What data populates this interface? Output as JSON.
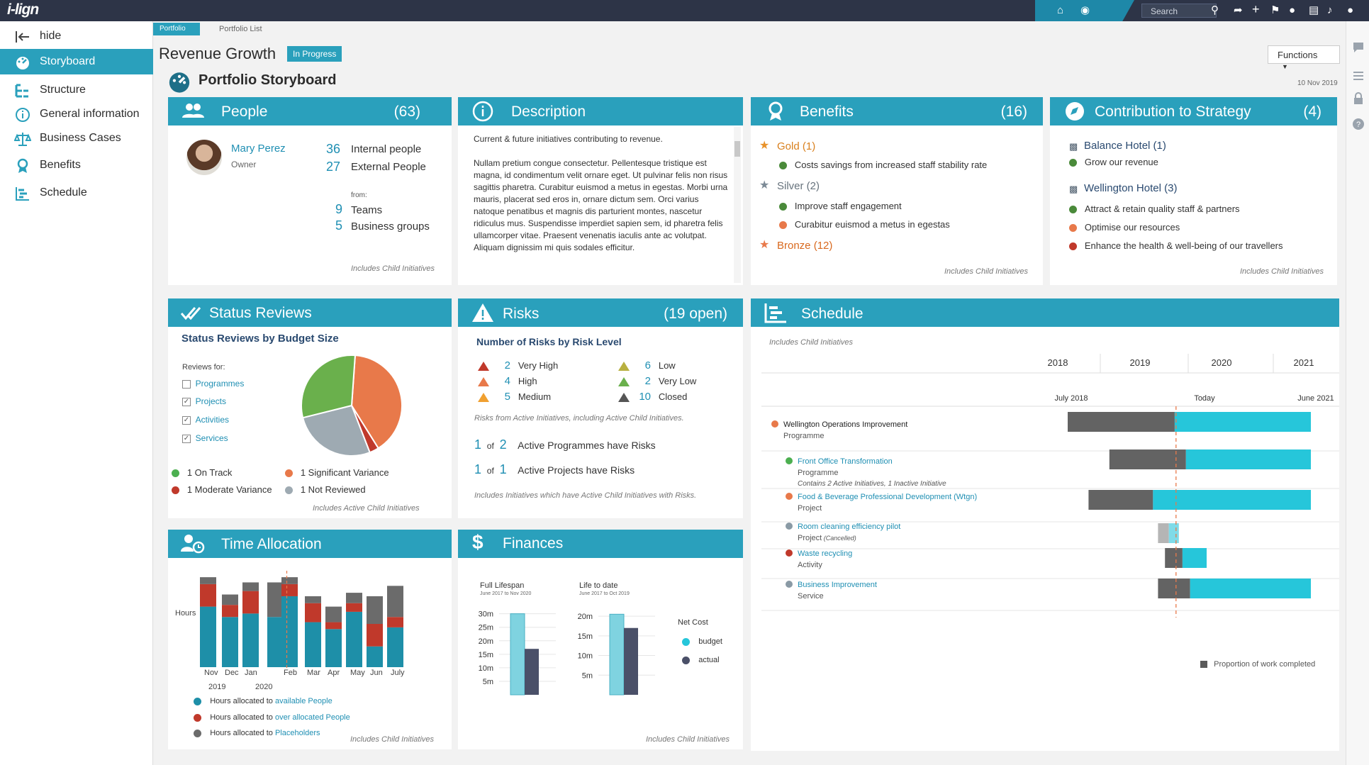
{
  "app": {
    "logo": "i-lign"
  },
  "topbar": {
    "search_placeholder": "Search"
  },
  "sidebar": {
    "items": [
      {
        "label": "hide",
        "icon": "arrow-left-bar-icon"
      },
      {
        "label": "Storyboard",
        "icon": "dashboard-icon",
        "active": true
      },
      {
        "label": "Structure",
        "icon": "structure-icon"
      },
      {
        "label": "General information",
        "icon": "info-icon"
      },
      {
        "label": "Business Cases",
        "icon": "scales-icon"
      },
      {
        "label": "Benefits",
        "icon": "award-icon"
      },
      {
        "label": "Schedule",
        "icon": "gantt-icon"
      }
    ]
  },
  "breadcrumb": {
    "portfolio": "Portfolio",
    "list": "Portfolio List"
  },
  "page": {
    "title": "Revenue Growth",
    "status": "In Progress",
    "storyboard_title": "Portfolio Storyboard",
    "functions_label": "Functions",
    "date": "10 Nov 2019"
  },
  "colors": {
    "accent": "#2aa0bc",
    "green": "#4caf50",
    "orange": "#e8794a",
    "red": "#c0392b",
    "grey": "#8a9aa5",
    "dark": "#5a5a5a",
    "cyan": "#26c6da"
  },
  "people": {
    "title": "People",
    "count": "(63)",
    "person_name": "Mary Perez",
    "person_role": "Owner",
    "internal_num": "36",
    "internal_label": "Internal people",
    "external_num": "27",
    "external_label": "External People",
    "from_label": "from:",
    "teams_num": "9",
    "teams_label": "Teams",
    "groups_num": "5",
    "groups_label": "Business groups",
    "note": "Includes Child Initiatives"
  },
  "description": {
    "title": "Description",
    "intro": "Current & future initiatives contributing to revenue.",
    "body": "Nullam pretium congue consectetur. Pellentesque tristique est magna, id condimentum velit ornare eget. Ut pulvinar felis non risus sagittis pharetra. Curabitur euismod a metus in egestas. Morbi urna mauris, placerat sed eros in, ornare dictum sem. Orci varius natoque penatibus et magnis dis parturient montes, nascetur ridiculus mus. Suspendisse imperdiet sapien sem, id pharetra felis ullamcorper vitae. Praesent venenatis iaculis ante ac volutpat. Aliquam dignissim mi quis sodales efficitur."
  },
  "benefits": {
    "title": "Benefits",
    "count": "(16)",
    "gold": "Gold (1)",
    "gold_item": "Costs savings from increased staff stability rate",
    "silver": "Silver (2)",
    "silver_item1": "Improve staff engagement",
    "silver_item2": "Curabitur euismod a metus in egestas",
    "bronze": "Bronze (12)",
    "note": "Includes Child Initiatives"
  },
  "strategy": {
    "title": "Contribution to Strategy",
    "count": "(4)",
    "h1": "Balance Hotel (1)",
    "h1_item": "Grow our revenue",
    "h2": "Wellington Hotel (3)",
    "h2_item1": "Attract & retain quality staff & partners",
    "h2_item2": "Optimise our resources",
    "h2_item3": "Enhance the health & well-being of our travellers",
    "note": "Includes Child Initiatives"
  },
  "status_reviews": {
    "title": "Status Reviews",
    "subtitle": "Status Reviews by Budget Size",
    "reviews_for": "Reviews for:",
    "filters": [
      {
        "label": "Programmes",
        "checked": false
      },
      {
        "label": "Projects",
        "checked": true
      },
      {
        "label": "Activities",
        "checked": true
      },
      {
        "label": "Services",
        "checked": true
      }
    ],
    "legend": [
      "1 On Track",
      "1 Significant Variance",
      "1 Moderate Variance",
      "1 Not Reviewed"
    ],
    "note": "Includes Active Child Initiatives"
  },
  "risks": {
    "title": "Risks",
    "count": "(19 open)",
    "subtitle": "Number of Risks by Risk Level",
    "levels": [
      {
        "num": "2",
        "label": "Very High",
        "color": "#c0392b"
      },
      {
        "num": "4",
        "label": "High",
        "color": "#e8794a"
      },
      {
        "num": "5",
        "label": "Medium",
        "color": "#f0a030"
      },
      {
        "num": "6",
        "label": "Low",
        "color": "#b8b040"
      },
      {
        "num": "2",
        "label": "Very Low",
        "color": "#6ab04c"
      },
      {
        "num": "10",
        "label": "Closed",
        "color": "#555555"
      }
    ],
    "from_note": "Risks from Active Initiatives, including Active Child Initiatives.",
    "prog_a": "1",
    "of": "of",
    "prog_b": "2",
    "prog_label": "Active Programmes have Risks",
    "proj_a": "1",
    "proj_b": "1",
    "proj_label": "Active Projects have Risks",
    "note": "Includes Initiatives which have Active Child Initiatives with Risks."
  },
  "schedule": {
    "title": "Schedule",
    "note_top": "Includes Child Initiatives",
    "years": [
      "2018",
      "2019",
      "2020",
      "2021"
    ],
    "sub_left": "July 2018",
    "sub_today": "Today",
    "sub_right": "June 2021",
    "rows": [
      {
        "name": "Wellington Operations Improvement",
        "type": "Programme",
        "extra": "",
        "color": "#e8794a",
        "done": 0.44,
        "level": 0,
        "start": "2018-07",
        "end": "2021-06"
      },
      {
        "name": "Front Office Transformation",
        "type": "Programme",
        "extra": "Contains 2 Active Initiatives, 1 Inactive Initiative",
        "color": "#4caf50",
        "done": 0.38,
        "level": 1,
        "start": "2019-01",
        "end": "2021-06"
      },
      {
        "name": "Food & Beverage Professional Development (Wtgn)",
        "type": "Project",
        "extra": "",
        "color": "#e8794a",
        "done": 0.29,
        "level": 1,
        "start": "2018-10",
        "end": "2021-06"
      },
      {
        "name": "Room cleaning efficiency pilot",
        "type": "Project",
        "extra": "(Cancelled)",
        "color": "#8a9aa5",
        "done": 0.52,
        "level": 1,
        "start": "2019-08",
        "end": "2019-11"
      },
      {
        "name": "Waste recycling",
        "type": "Activity",
        "extra": "",
        "color": "#c0392b",
        "done": 0.42,
        "level": 1,
        "start": "2019-09",
        "end": "2020-03"
      },
      {
        "name": "Business Improvement",
        "type": "Service",
        "extra": "",
        "color": "#8a9aa5",
        "done": 0.21,
        "level": 1,
        "start": "2019-08",
        "end": "2021-06"
      }
    ],
    "legend": "Proportion of work completed"
  },
  "time_allocation": {
    "title": "Time Allocation",
    "ylabel": "Hours",
    "months": [
      "Nov",
      "Dec",
      "Jan",
      "Feb",
      "Mar",
      "Apr",
      "May",
      "Jun",
      "July"
    ],
    "year_labels": [
      "2019",
      "2020"
    ],
    "legend": [
      {
        "prefix": "Hours allocated to ",
        "link": "available People"
      },
      {
        "prefix": "Hours allocated to ",
        "link": "over allocated People"
      },
      {
        "prefix": "Hours allocated to ",
        "link": "Placeholders"
      }
    ],
    "note": "Includes Child Initiatives"
  },
  "finances": {
    "title": "Finances",
    "full_label": "Full Lifespan",
    "full_range": "June 2017 to Nov 2020",
    "ltd_label": "Life to date",
    "ltd_range": "June 2017 to Oct 2019",
    "full_ticks": [
      "30m",
      "25m",
      "20m",
      "15m",
      "10m",
      "5m"
    ],
    "ltd_ticks": [
      "20m",
      "15m",
      "10m",
      "5m"
    ],
    "legend_title": "Net Cost",
    "legend_budget": "budget",
    "legend_actual": "actual",
    "note": "Includes Child Initiatives"
  },
  "chart_data": [
    {
      "type": "pie",
      "title": "Status Reviews by Budget Size",
      "slices": [
        {
          "label": "On Track",
          "value": 30,
          "color": "#6ab04c"
        },
        {
          "label": "Significant Variance",
          "value": 40,
          "color": "#e8794a"
        },
        {
          "label": "Not Reviewed",
          "value": 27,
          "color": "#9eaab2"
        },
        {
          "label": "Moderate Variance",
          "value": 3,
          "color": "#c0392b"
        }
      ]
    },
    {
      "type": "bar",
      "title": "Time Allocation",
      "ylabel": "Hours",
      "categories": [
        "Nov",
        "Dec",
        "Jan",
        "",
        "Feb",
        "Mar",
        "Apr",
        "May",
        "Jun",
        "July"
      ],
      "stacked": true,
      "series": [
        {
          "name": "available People",
          "color": "#1e8fa8",
          "values": [
            70,
            58,
            62,
            58,
            82,
            52,
            44,
            64,
            24,
            46
          ]
        },
        {
          "name": "over allocated People",
          "color": "#c0392b",
          "values": [
            26,
            14,
            26,
            0,
            14,
            22,
            8,
            10,
            26,
            12
          ]
        },
        {
          "name": "Placeholders",
          "color": "#6b6b6b",
          "values": [
            8,
            12,
            10,
            40,
            8,
            8,
            18,
            12,
            32,
            36
          ]
        }
      ],
      "today_index": 3.5
    },
    {
      "type": "bar",
      "title": "Full Lifespan",
      "ylim": [
        0,
        32
      ],
      "categories": [
        "budget",
        "actual"
      ],
      "values": [
        30,
        17
      ]
    },
    {
      "type": "bar",
      "title": "Life to date",
      "ylim": [
        0,
        22
      ],
      "categories": [
        "budget",
        "actual"
      ],
      "values": [
        20.5,
        17
      ]
    }
  ]
}
